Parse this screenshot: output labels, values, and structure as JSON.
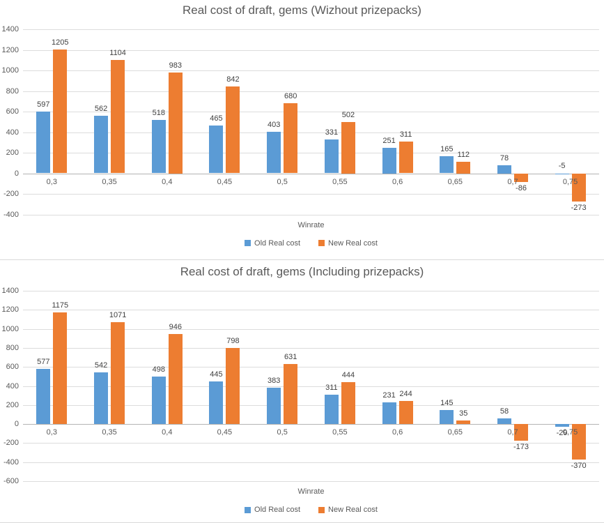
{
  "page": {
    "background": "#ffffff"
  },
  "colors": {
    "gridline": "#dcdcdc",
    "zero_axis": "#b3b3b3",
    "title_text": "#595959",
    "tick_text": "#595959",
    "bar_label_text": "#404040",
    "panel_border": "#d9d9d9",
    "series_old": "#5B9BD5",
    "series_new": "#ED7D31"
  },
  "chart_data": [
    {
      "type": "bar",
      "title": "Real cost of draft, gems (Wizhout prizepacks)",
      "xlabel": "Winrate",
      "categories": [
        "0,3",
        "0,35",
        "0,4",
        "0,45",
        "0,5",
        "0,55",
        "0,6",
        "0,65",
        "0,7",
        "0,75"
      ],
      "series": [
        {
          "name": "Old Real cost",
          "color": "#5B9BD5",
          "values": [
            597,
            562,
            518,
            465,
            403,
            331,
            251,
            165,
            78,
            -5
          ]
        },
        {
          "name": "New Real cost",
          "color": "#ED7D31",
          "values": [
            1205,
            1104,
            983,
            842,
            680,
            502,
            311,
            112,
            -86,
            -273
          ]
        }
      ],
      "ylim": [
        -400,
        1400
      ],
      "ytick_step": 200,
      "ytick_labels": [
        "1400",
        "1200",
        "1000",
        "800",
        "600",
        "400",
        "200",
        "0",
        "-200",
        "-400"
      ],
      "grid": true,
      "legend_position": "bottom"
    },
    {
      "type": "bar",
      "title": "Real cost of draft, gems (Including prizepacks)",
      "xlabel": "Winrate",
      "categories": [
        "0,3",
        "0,35",
        "0,4",
        "0,45",
        "0,5",
        "0,55",
        "0,6",
        "0,65",
        "0,7",
        "0,75"
      ],
      "series": [
        {
          "name": "Old Real cost",
          "color": "#5B9BD5",
          "values": [
            577,
            542,
            498,
            445,
            383,
            311,
            231,
            145,
            58,
            -29
          ]
        },
        {
          "name": "New Real cost",
          "color": "#ED7D31",
          "values": [
            1175,
            1071,
            946,
            798,
            631,
            444,
            244,
            35,
            -173,
            -370
          ]
        }
      ],
      "ylim": [
        -600,
        1400
      ],
      "ytick_step": 200,
      "ytick_labels": [
        "1400",
        "1200",
        "1000",
        "800",
        "600",
        "400",
        "200",
        "0",
        "-200",
        "-400",
        "-600"
      ],
      "grid": true,
      "legend_position": "bottom"
    }
  ]
}
